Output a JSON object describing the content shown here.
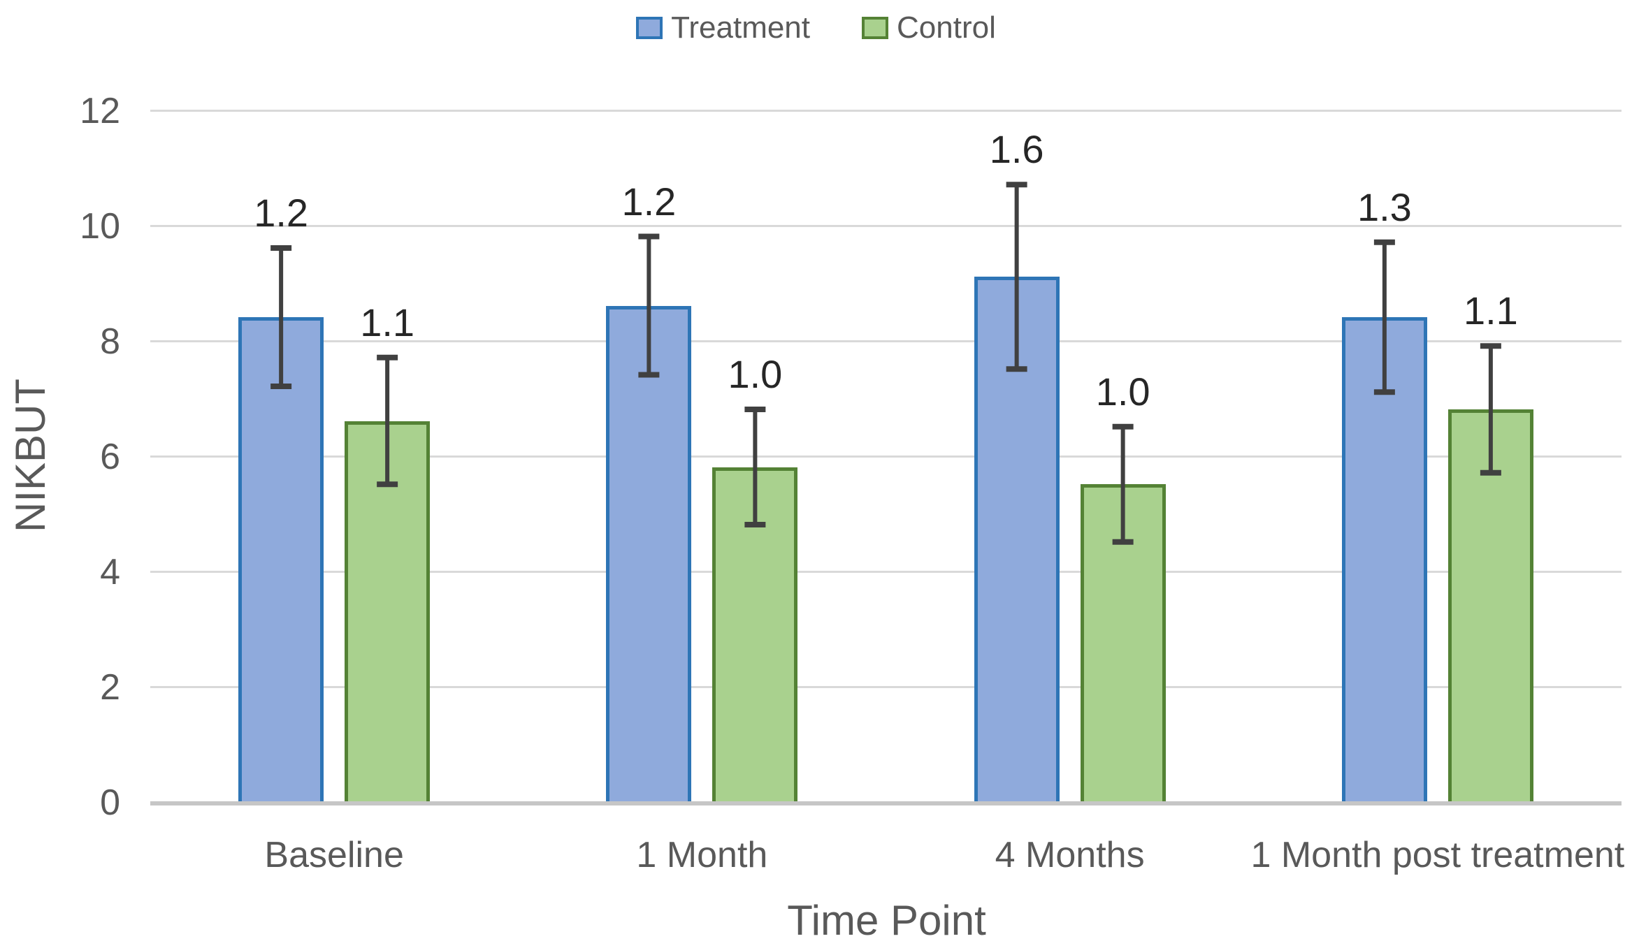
{
  "chart_data": {
    "type": "bar",
    "title": "",
    "categories": [
      "Baseline",
      "1 Month",
      "4 Months",
      "1 Month post treatment"
    ],
    "series": [
      {
        "name": "Treatment",
        "fill": "#8FAADC",
        "border": "#2E75B6",
        "values": [
          8.4,
          8.6,
          9.1,
          8.4
        ],
        "errors": [
          1.2,
          1.2,
          1.6,
          1.3
        ],
        "data_labels": [
          "1.2",
          "1.2",
          "1.6",
          "1.3"
        ]
      },
      {
        "name": "Control",
        "fill": "#A9D18E",
        "border": "#548235",
        "values": [
          6.6,
          5.8,
          5.5,
          6.8
        ],
        "errors": [
          1.1,
          1.0,
          1.0,
          1.1
        ],
        "data_labels": [
          "1.1",
          "1.0",
          "1.0",
          "1.1"
        ]
      }
    ],
    "xlabel": "Time Point",
    "ylabel": "NIKBUT",
    "ylim": [
      0,
      12
    ],
    "yticks": [
      "0",
      "2",
      "4",
      "6",
      "8",
      "10",
      "12"
    ],
    "ytick_step": 2,
    "grid": true,
    "legend_position": "top",
    "error_bars": true,
    "colors": {
      "gridline": "#D9D9D9",
      "axis_line": "#C6C6C6",
      "tick_text": "#595959",
      "data_label_text": "#262626",
      "error_bar": "#404040",
      "background": "#FFFFFF"
    }
  }
}
